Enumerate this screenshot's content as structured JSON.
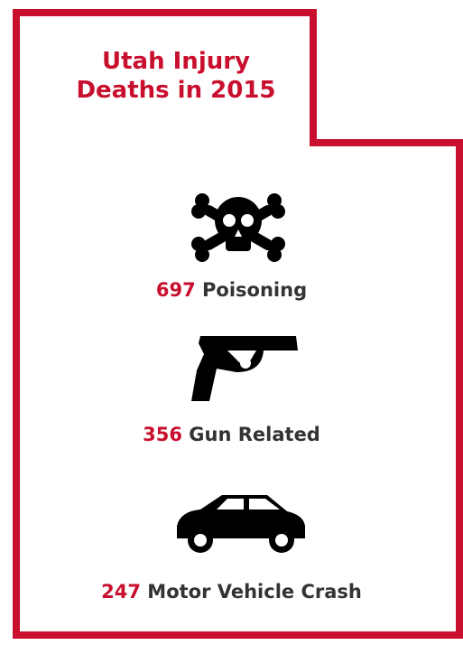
{
  "title": "Utah Injury Deaths in 2015",
  "items": [
    {
      "count": "697",
      "label": "Poisoning"
    },
    {
      "count": "356",
      "label": "Gun Related"
    },
    {
      "count": "247",
      "label": "Motor Vehicle Crash"
    }
  ]
}
